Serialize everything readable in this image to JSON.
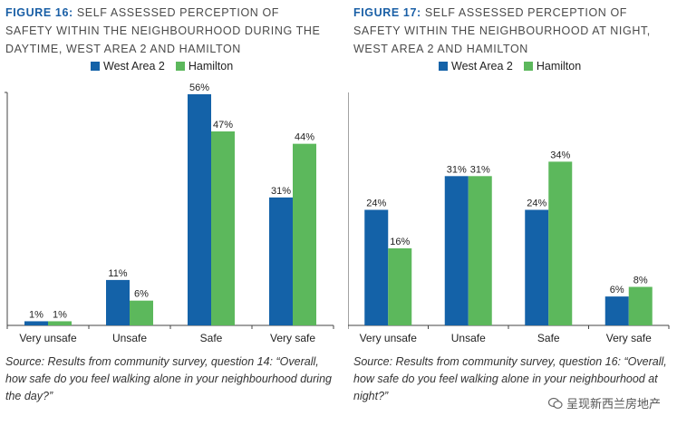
{
  "chart_data": [
    {
      "type": "bar",
      "title_prefix": "FIGURE 16:",
      "title": "SELF ASSESSED PERCEPTION OF SAFETY WITHIN THE NEIGHBOURHOOD DURING THE DAYTIME, WEST AREA 2 AND HAMILTON",
      "categories": [
        "Very unsafe",
        "Unsafe",
        "Safe",
        "Very safe"
      ],
      "series": [
        {
          "name": "West Area 2",
          "values": [
            1,
            11,
            56,
            31
          ],
          "labels": [
            "1%",
            "11%",
            "56%",
            "31%"
          ],
          "color": "#1462a8"
        },
        {
          "name": "Hamilton",
          "values": [
            1,
            6,
            47,
            44
          ],
          "labels": [
            "1%",
            "6%",
            "47%",
            "44%"
          ],
          "color": "#5cb85c"
        }
      ],
      "ylim": [
        0,
        56
      ],
      "legend_position": "top",
      "grid": false,
      "source": "Source: Results from community survey, question 14: “Overall, how safe do you feel walking alone in your neighbourhood during the day?”"
    },
    {
      "type": "bar",
      "title_prefix": "FIGURE 17:",
      "title": "SELF ASSESSED PERCEPTION OF SAFETY WITHIN THE NEIGHBOURHOOD AT NIGHT, WEST AREA 2 AND HAMILTON",
      "categories": [
        "Very unsafe",
        "Unsafe",
        "Safe",
        "Very safe"
      ],
      "series": [
        {
          "name": "West Area 2",
          "values": [
            24,
            31,
            24,
            6
          ],
          "labels": [
            "24%",
            "31%",
            "24%",
            "6%"
          ],
          "color": "#1462a8"
        },
        {
          "name": "Hamilton",
          "values": [
            16,
            31,
            34,
            8
          ],
          "labels": [
            "16%",
            "31%",
            "34%",
            "8%"
          ],
          "color": "#5cb85c"
        }
      ],
      "ylim": [
        0,
        48
      ],
      "legend_position": "top",
      "grid": false,
      "source": "Source: Results from community survey, question 16: “Overall, how safe do you feel walking alone in your neighbourhood at night?”"
    }
  ],
  "watermark": "呈现新西兰房地产"
}
